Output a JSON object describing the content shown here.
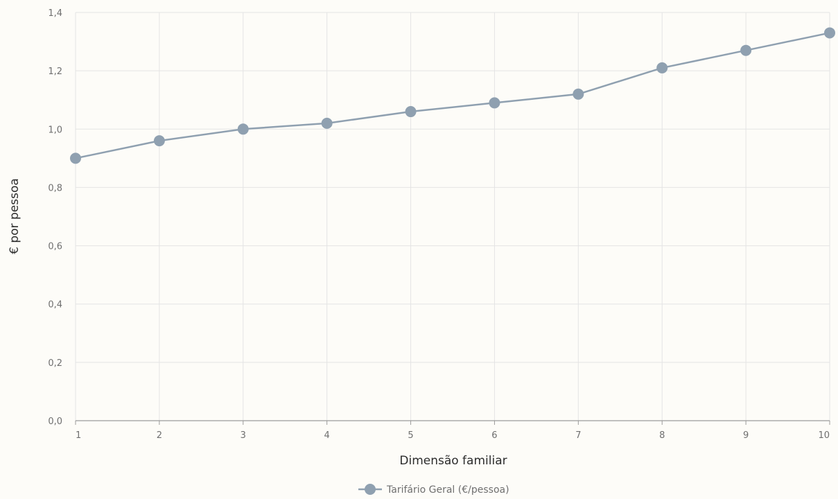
{
  "chart_data": {
    "type": "line",
    "xlabel": "Dimensão familiar",
    "ylabel": "€ por pessoa",
    "x": [
      1,
      2,
      3,
      4,
      5,
      6,
      7,
      8,
      9,
      10
    ],
    "x_tick_labels": [
      "1",
      "2",
      "3",
      "4",
      "5",
      "6",
      "7",
      "8",
      "9",
      "10"
    ],
    "ylim": [
      0,
      1.4
    ],
    "y_ticks": [
      0,
      0.2,
      0.4,
      0.6,
      0.8,
      1.0,
      1.2,
      1.4
    ],
    "y_tick_labels": [
      "0,0",
      "0,2",
      "0,4",
      "0,6",
      "0,8",
      "1,0",
      "1,2",
      "1,4"
    ],
    "grid": true,
    "legend_position": "bottom-center",
    "series": [
      {
        "name": "Tarifário Geral (€/pessoa)",
        "values": [
          0.9,
          0.96,
          1.0,
          1.02,
          1.06,
          1.09,
          1.12,
          1.21,
          1.27,
          1.33
        ],
        "color": "#8fa0b0"
      }
    ]
  }
}
